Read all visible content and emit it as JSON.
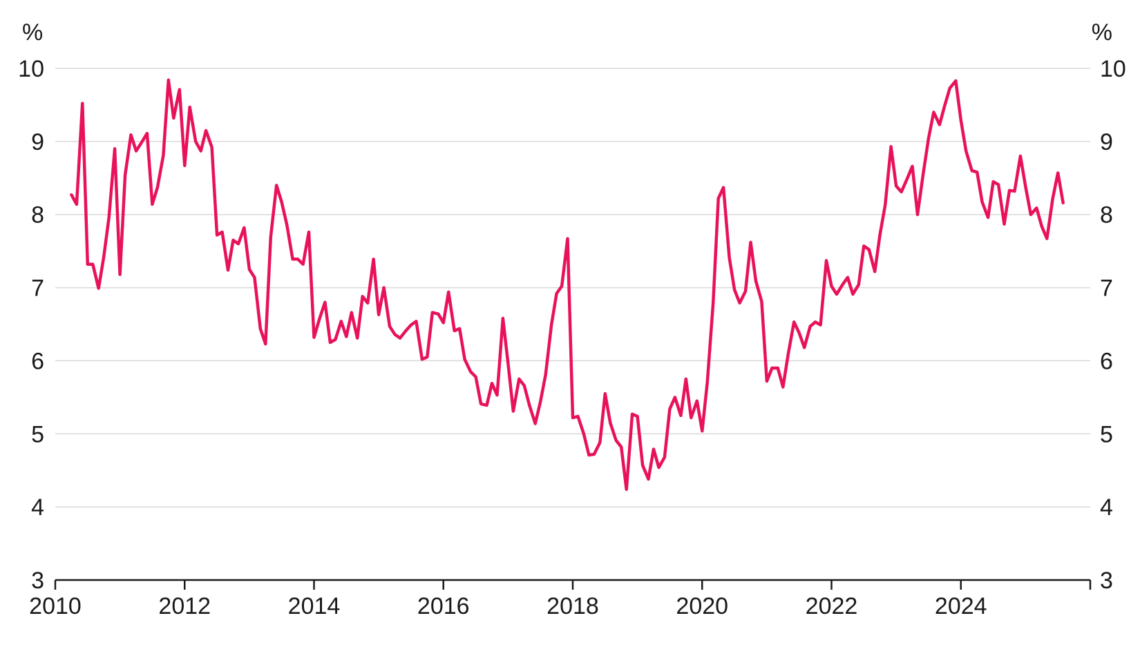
{
  "chart_data": {
    "type": "line",
    "title": "",
    "xlabel": "",
    "ylabel": "",
    "y_unit_left": "%",
    "y_unit_right": "%",
    "xlim": [
      2010,
      2026
    ],
    "ylim": [
      3,
      10
    ],
    "x_ticks": [
      2010,
      2012,
      2014,
      2016,
      2018,
      2020,
      2022,
      2024
    ],
    "x_tick_labels": [
      "2010",
      "2012",
      "2014",
      "2016",
      "2018",
      "2020",
      "2022",
      "2024"
    ],
    "y_ticks": [
      3,
      4,
      5,
      6,
      7,
      8,
      9,
      10
    ],
    "y_tick_labels": [
      "3",
      "4",
      "5",
      "6",
      "7",
      "8",
      "9",
      "10"
    ],
    "grid": true,
    "legend": "none",
    "colors": {
      "series": "#e8125c",
      "axis": "#1a1a1a",
      "grid": "#d9d9d9"
    },
    "series": [
      {
        "x": [
          2010.25,
          2010.33,
          2010.42,
          2010.5,
          2010.58,
          2010.67,
          2010.75,
          2010.83,
          2010.92,
          2011.0,
          2011.08,
          2011.17,
          2011.25,
          2011.33,
          2011.42,
          2011.5,
          2011.58,
          2011.67,
          2011.75,
          2011.83,
          2011.92,
          2012.0,
          2012.08,
          2012.17,
          2012.25,
          2012.33,
          2012.42,
          2012.5,
          2012.58,
          2012.67,
          2012.75,
          2012.83,
          2012.92,
          2013.0,
          2013.08,
          2013.17,
          2013.25,
          2013.33,
          2013.42,
          2013.5,
          2013.58,
          2013.67,
          2013.75,
          2013.83,
          2013.92,
          2014.0,
          2014.08,
          2014.17,
          2014.25,
          2014.33,
          2014.42,
          2014.5,
          2014.58,
          2014.67,
          2014.75,
          2014.83,
          2014.92,
          2015.0,
          2015.08,
          2015.17,
          2015.25,
          2015.33,
          2015.42,
          2015.5,
          2015.58,
          2015.67,
          2015.75,
          2015.83,
          2015.92,
          2016.0,
          2016.08,
          2016.17,
          2016.25,
          2016.33,
          2016.42,
          2016.5,
          2016.58,
          2016.67,
          2016.75,
          2016.83,
          2016.92,
          2017.0,
          2017.08,
          2017.17,
          2017.25,
          2017.33,
          2017.42,
          2017.5,
          2017.58,
          2017.67,
          2017.75,
          2017.83,
          2017.92,
          2018.0,
          2018.08,
          2018.17,
          2018.25,
          2018.33,
          2018.42,
          2018.5,
          2018.58,
          2018.67,
          2018.75,
          2018.83,
          2018.92,
          2019.0,
          2019.08,
          2019.17,
          2019.25,
          2019.33,
          2019.42,
          2019.5,
          2019.58,
          2019.67,
          2019.75,
          2019.83,
          2019.92,
          2020.0,
          2020.08,
          2020.17,
          2020.25,
          2020.33,
          2020.42,
          2020.5,
          2020.58,
          2020.67,
          2020.75,
          2020.83,
          2020.92,
          2021.0,
          2021.08,
          2021.17,
          2021.25,
          2021.33,
          2021.42,
          2021.5,
          2021.58,
          2021.67,
          2021.75,
          2021.83,
          2021.92,
          2022.0,
          2022.08,
          2022.17,
          2022.25,
          2022.33,
          2022.42,
          2022.5,
          2022.58,
          2022.67,
          2022.75,
          2022.83,
          2022.92,
          2023.0,
          2023.08,
          2023.17,
          2023.25,
          2023.33,
          2023.42,
          2023.5,
          2023.58,
          2023.67,
          2023.75,
          2023.83,
          2023.92,
          2024.0,
          2024.08,
          2024.17,
          2024.25,
          2024.33,
          2024.42,
          2024.5,
          2024.58,
          2024.67,
          2024.75,
          2024.83,
          2024.92,
          2025.0,
          2025.08,
          2025.17,
          2025.25,
          2025.33,
          2025.42,
          2025.5,
          2025.58
        ],
        "values": [
          8.27,
          8.14,
          9.52,
          7.32,
          7.32,
          6.99,
          7.42,
          7.96,
          8.9,
          7.18,
          8.54,
          9.09,
          8.87,
          8.98,
          9.11,
          8.14,
          8.37,
          8.81,
          9.84,
          9.32,
          9.71,
          8.67,
          9.47,
          9.0,
          8.87,
          9.15,
          8.92,
          7.72,
          7.76,
          7.24,
          7.65,
          7.6,
          7.82,
          7.25,
          7.14,
          6.44,
          6.23,
          7.69,
          8.4,
          8.17,
          7.86,
          7.39,
          7.39,
          7.32,
          7.76,
          6.32,
          6.56,
          6.8,
          6.25,
          6.29,
          6.54,
          6.33,
          6.66,
          6.31,
          6.88,
          6.79,
          7.39,
          6.63,
          7.0,
          6.47,
          6.36,
          6.31,
          6.41,
          6.49,
          6.54,
          6.02,
          6.05,
          6.66,
          6.64,
          6.52,
          6.94,
          6.41,
          6.44,
          6.02,
          5.85,
          5.78,
          5.41,
          5.39,
          5.69,
          5.53,
          6.58,
          5.96,
          5.31,
          5.75,
          5.66,
          5.39,
          5.14,
          5.44,
          5.81,
          6.49,
          6.92,
          7.02,
          7.67,
          5.22,
          5.24,
          5.0,
          4.71,
          4.72,
          4.88,
          5.55,
          5.15,
          4.91,
          4.82,
          4.24,
          5.27,
          5.24,
          4.57,
          4.38,
          4.79,
          4.54,
          4.68,
          5.34,
          5.5,
          5.25,
          5.75,
          5.22,
          5.45,
          5.04,
          5.7,
          6.79,
          8.22,
          8.37,
          7.41,
          6.97,
          6.79,
          6.95,
          7.62,
          7.09,
          6.81,
          5.72,
          5.9,
          5.9,
          5.64,
          6.09,
          6.53,
          6.38,
          6.18,
          6.47,
          6.53,
          6.49,
          7.37,
          7.02,
          6.91,
          7.04,
          7.14,
          6.91,
          7.04,
          7.57,
          7.52,
          7.22,
          7.73,
          8.13,
          8.93,
          8.39,
          8.31,
          8.49,
          8.66,
          8.0,
          8.57,
          9.04,
          9.4,
          9.23,
          9.49,
          9.73,
          9.83,
          9.29,
          8.87,
          8.6,
          8.58,
          8.17,
          7.96,
          8.45,
          8.41,
          7.87,
          8.33,
          8.32,
          8.8,
          8.38,
          8.0,
          8.09,
          7.84,
          7.67,
          8.22,
          8.57,
          8.16
        ]
      }
    ]
  }
}
